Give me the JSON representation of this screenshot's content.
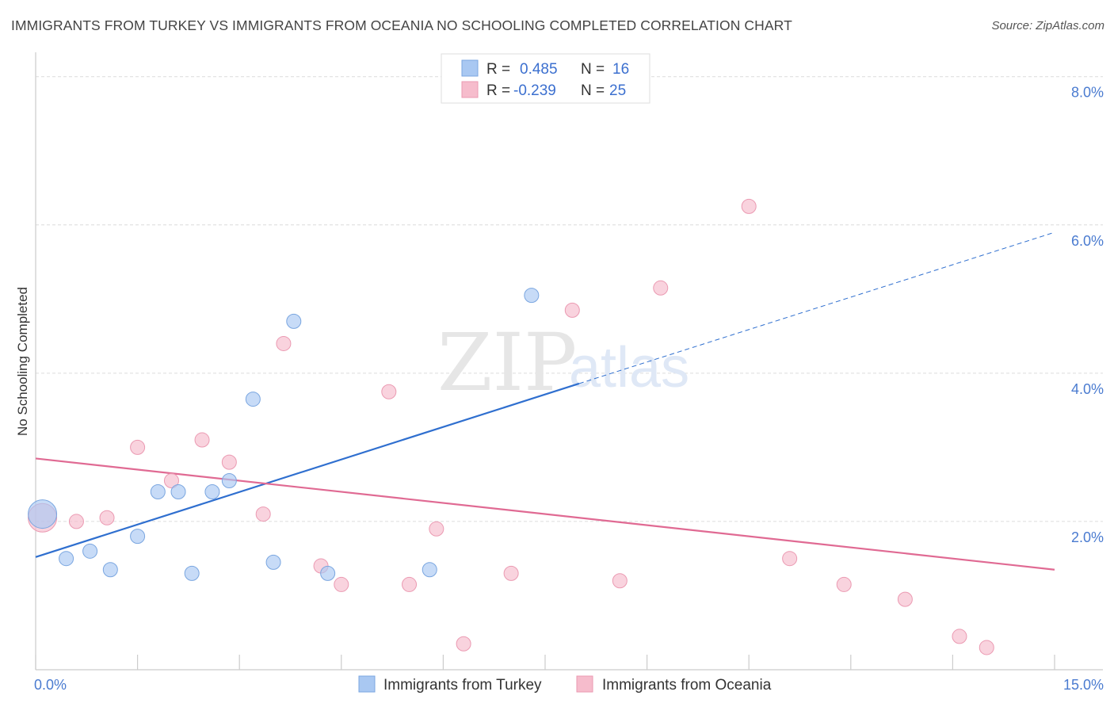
{
  "header": {
    "title": "IMMIGRANTS FROM TURKEY VS IMMIGRANTS FROM OCEANIA NO SCHOOLING COMPLETED CORRELATION CHART",
    "source": "Source: ZipAtlas.com"
  },
  "watermark": {
    "zip": "ZIP",
    "atlas": "atlas"
  },
  "legend": {
    "rows": [
      {
        "r_label": "R =",
        "r_value": "0.485",
        "n_label": "N =",
        "n_value": "16",
        "color": "#a9c8f2"
      },
      {
        "r_label": "R =",
        "r_value": "-0.239",
        "n_label": "N =",
        "n_value": "25",
        "color": "#f6bccc"
      }
    ]
  },
  "bottom_legend": {
    "items": [
      {
        "label": "Immigrants from Turkey",
        "color": "#a9c8f2"
      },
      {
        "label": "Immigrants from Oceania",
        "color": "#f6bccc"
      }
    ]
  },
  "chart_data": {
    "type": "scatter",
    "title": "IMMIGRANTS FROM TURKEY VS IMMIGRANTS FROM OCEANIA NO SCHOOLING COMPLETED CORRELATION CHART",
    "xlabel": "",
    "ylabel": "No Schooling Completed",
    "xlim": [
      0,
      15
    ],
    "ylim": [
      0,
      8.2
    ],
    "x_tick_labels": [
      "0.0%",
      "15.0%"
    ],
    "y_ticks": [
      2,
      4,
      6,
      8
    ],
    "y_tick_labels": [
      "2.0%",
      "4.0%",
      "6.0%",
      "8.0%"
    ],
    "grid": true,
    "legend_position": "top-center",
    "series": [
      {
        "name": "Immigrants from Turkey",
        "color": "#a9c8f2",
        "stroke": "#7aa6e0",
        "trend_color": "#2f6fcf",
        "x": [
          0.1,
          0.45,
          0.8,
          1.1,
          1.5,
          1.8,
          2.1,
          2.3,
          2.6,
          2.85,
          3.2,
          3.5,
          3.8,
          4.3,
          5.8,
          7.3
        ],
        "y": [
          2.1,
          1.5,
          1.6,
          1.35,
          1.8,
          2.4,
          2.4,
          1.3,
          2.4,
          2.55,
          3.65,
          1.45,
          4.7,
          1.3,
          1.35,
          5.05
        ],
        "sizes": [
          18,
          9,
          9,
          9,
          9,
          9,
          9,
          9,
          9,
          9,
          9,
          9,
          9,
          9,
          9,
          9
        ],
        "trend": {
          "x0": 0.0,
          "y0": 1.52,
          "x1": 8.0,
          "y1": 3.86,
          "dash_to_x": 15.0,
          "dash_to_y": 5.9
        }
      },
      {
        "name": "Immigrants from Oceania",
        "color": "#f6bccc",
        "stroke": "#eb9ab2",
        "trend_color": "#e06a93",
        "x": [
          0.1,
          0.6,
          1.05,
          1.5,
          2.0,
          2.45,
          2.85,
          3.35,
          3.65,
          4.2,
          4.5,
          5.2,
          5.5,
          5.9,
          6.3,
          7.0,
          7.9,
          8.6,
          9.2,
          10.5,
          11.1,
          11.9,
          12.8,
          13.6,
          14.0
        ],
        "y": [
          2.05,
          2.0,
          2.05,
          3.0,
          2.55,
          3.1,
          2.8,
          2.1,
          4.4,
          1.4,
          1.15,
          3.75,
          1.15,
          1.9,
          0.35,
          1.3,
          4.85,
          1.2,
          5.15,
          6.25,
          1.5,
          1.15,
          0.95,
          0.45,
          0.3
        ],
        "sizes": [
          18,
          9,
          9,
          9,
          9,
          9,
          9,
          9,
          9,
          9,
          9,
          9,
          9,
          9,
          9,
          9,
          9,
          9,
          9,
          9,
          9,
          9,
          9,
          9,
          9
        ],
        "trend": {
          "x0": 0.0,
          "y0": 2.85,
          "x1": 15.0,
          "y1": 1.35
        }
      }
    ]
  }
}
